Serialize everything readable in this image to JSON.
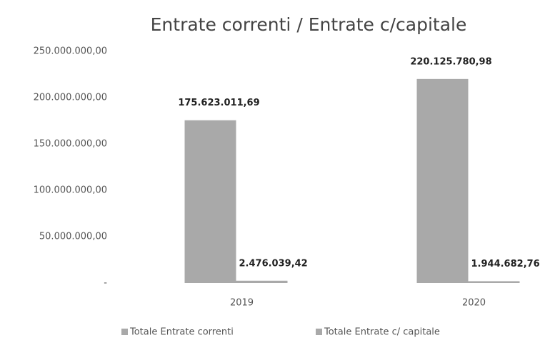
{
  "chart_data": {
    "type": "bar",
    "title": "Entrate correnti / Entrate c/capitale",
    "categories": [
      "2019",
      "2020"
    ],
    "series": [
      {
        "name": "Totale Entrate correnti",
        "color": "#a9a9a9",
        "values": [
          175623011.69,
          220125780.98
        ],
        "value_labels": [
          "175.623.011,69",
          "220.125.780,98"
        ]
      },
      {
        "name": "Totale Entrate c/ capitale",
        "color": "#a9a9a9",
        "values": [
          2476039.42,
          1944682.76
        ],
        "value_labels": [
          "2.476.039,42",
          "1.944.682,76"
        ]
      }
    ],
    "ylim": [
      0,
      250000000
    ],
    "yticks": [
      {
        "value": 0,
        "label": "-"
      },
      {
        "value": 50000000,
        "label": "50.000.000,00"
      },
      {
        "value": 100000000,
        "label": "100.000.000,00"
      },
      {
        "value": 150000000,
        "label": "150.000.000,00"
      },
      {
        "value": 200000000,
        "label": "200.000.000,00"
      },
      {
        "value": 250000000,
        "label": "250.000.000,00"
      }
    ],
    "grid": false
  }
}
